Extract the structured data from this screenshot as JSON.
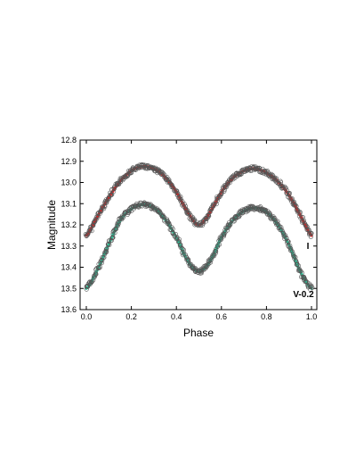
{
  "chart_data": {
    "type": "scatter",
    "xlabel": "Phase",
    "ylabel": "Magnitude",
    "xlim": [
      0.0,
      1.0
    ],
    "ylim": [
      12.8,
      13.6
    ],
    "y_inverted": true,
    "grid": false,
    "x_ticks": [
      "0.0",
      "0.2",
      "0.4",
      "0.6",
      "0.8",
      "1.0"
    ],
    "y_ticks": [
      "12.8",
      "12.9",
      "13.0",
      "13.1",
      "13.2",
      "13.3",
      "13.4",
      "13.5",
      "13.6"
    ],
    "series": [
      {
        "name": "I",
        "color": "#e02020",
        "x": [
          0.0,
          0.05,
          0.1,
          0.15,
          0.2,
          0.25,
          0.3,
          0.35,
          0.4,
          0.45,
          0.5,
          0.55,
          0.6,
          0.65,
          0.7,
          0.75,
          0.8,
          0.85,
          0.9,
          0.95,
          1.0
        ],
        "fit": [
          13.25,
          13.16,
          13.07,
          12.995,
          12.945,
          12.925,
          12.935,
          12.975,
          13.045,
          13.14,
          13.2,
          13.14,
          13.045,
          12.98,
          12.945,
          12.935,
          12.955,
          12.995,
          13.06,
          13.155,
          13.25
        ]
      },
      {
        "name": "V-0.2",
        "color": "#2ec69b",
        "x": [
          0.0,
          0.05,
          0.1,
          0.15,
          0.2,
          0.25,
          0.3,
          0.35,
          0.4,
          0.45,
          0.5,
          0.55,
          0.6,
          0.65,
          0.7,
          0.75,
          0.8,
          0.85,
          0.9,
          0.95,
          1.0
        ],
        "fit": [
          13.5,
          13.41,
          13.29,
          13.18,
          13.125,
          13.105,
          13.12,
          13.175,
          13.26,
          13.37,
          13.42,
          13.37,
          13.26,
          13.18,
          13.135,
          13.12,
          13.14,
          13.2,
          13.295,
          13.42,
          13.5
        ]
      }
    ]
  }
}
